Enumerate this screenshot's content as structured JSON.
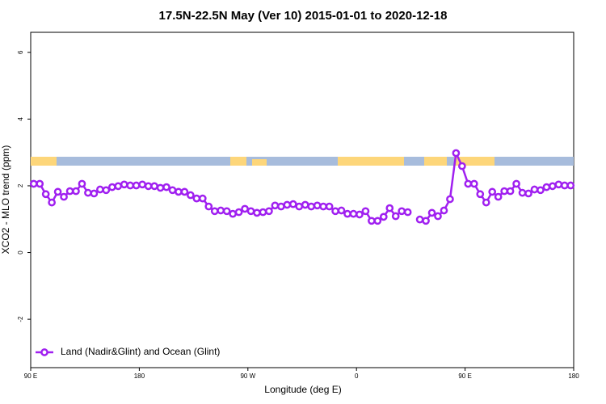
{
  "chart_data": {
    "type": "line",
    "title": "17.5N-22.5N May (Ver 10)   2015-01-01 to 2020-12-18",
    "x_label": "Longitude (deg E)",
    "y_label": "XCO2 - MLO trend (ppm)",
    "x": [
      92.5,
      97.5,
      102.5,
      107.5,
      112.5,
      117.5,
      122.5,
      127.5,
      132.5,
      137.5,
      142.5,
      147.5,
      152.5,
      157.5,
      162.5,
      167.5,
      172.5,
      177.5,
      182.5,
      187.5,
      192.5,
      197.5,
      202.5,
      207.5,
      212.5,
      217.5,
      222.5,
      227.5,
      232.5,
      237.5,
      242.5,
      247.5,
      252.5,
      257.5,
      262.5,
      267.5,
      272.5,
      277.5,
      282.5,
      287.5,
      292.5,
      297.5,
      302.5,
      307.5,
      312.5,
      317.5,
      322.5,
      327.5,
      332.5,
      337.5,
      342.5,
      347.5,
      352.5,
      357.5,
      362.5,
      367.5,
      372.5,
      377.5,
      382.5,
      387.5,
      392.5,
      397.5,
      402.5,
      407.5,
      412.5,
      417.5,
      422.5,
      427.5,
      432.5,
      437.5,
      442.5,
      447.5,
      452.5,
      457.5,
      462.5,
      467.5,
      472.5,
      477.5,
      482.5,
      487.5,
      492.5,
      497.5,
      502.5,
      507.5,
      512.5,
      517.5,
      522.5,
      527.5,
      532.5,
      537.5
    ],
    "series": [
      {
        "name": "Land (Nadir&Glint) and Ocean (Glint)",
        "color": "#a020f0",
        "values": [
          2.06,
          2.06,
          1.75,
          1.5,
          1.82,
          1.67,
          1.84,
          1.84,
          2.06,
          1.79,
          1.77,
          1.89,
          1.87,
          1.96,
          1.99,
          2.04,
          2.01,
          2.01,
          2.04,
          1.99,
          1.99,
          1.94,
          1.96,
          1.87,
          1.82,
          1.82,
          1.72,
          1.62,
          1.62,
          1.38,
          1.24,
          1.26,
          1.24,
          1.16,
          1.21,
          1.31,
          1.24,
          1.19,
          1.21,
          1.24,
          1.41,
          1.38,
          1.43,
          1.45,
          1.38,
          1.43,
          1.38,
          1.41,
          1.38,
          1.38,
          1.24,
          1.26,
          1.16,
          1.16,
          1.14,
          1.24,
          0.95,
          0.95,
          1.07,
          1.33,
          1.09,
          1.24,
          1.21,
          null,
          0.99,
          0.95,
          1.19,
          1.09,
          1.26,
          1.6,
          2.98,
          2.59,
          2.06,
          2.06,
          1.75,
          1.5,
          1.82,
          1.67,
          1.84,
          1.84,
          2.06,
          1.79,
          1.77,
          1.89,
          1.87,
          1.96,
          1.99,
          2.04,
          2.01,
          2.01
        ]
      }
    ],
    "xlim": [
      90,
      540
    ],
    "xticks": [
      {
        "value": 90,
        "label": "90 E"
      },
      180,
      {
        "value": 270,
        "label": "90 W"
      },
      {
        "value": 360,
        "label": "0"
      },
      {
        "value": 450,
        "label": "90 E"
      },
      {
        "value": 540,
        "label": "180"
      }
    ],
    "ylim": [
      -3.45,
      6.6
    ],
    "yticks": [
      -2,
      0,
      2,
      4,
      6
    ],
    "legend": "bottom-left"
  }
}
